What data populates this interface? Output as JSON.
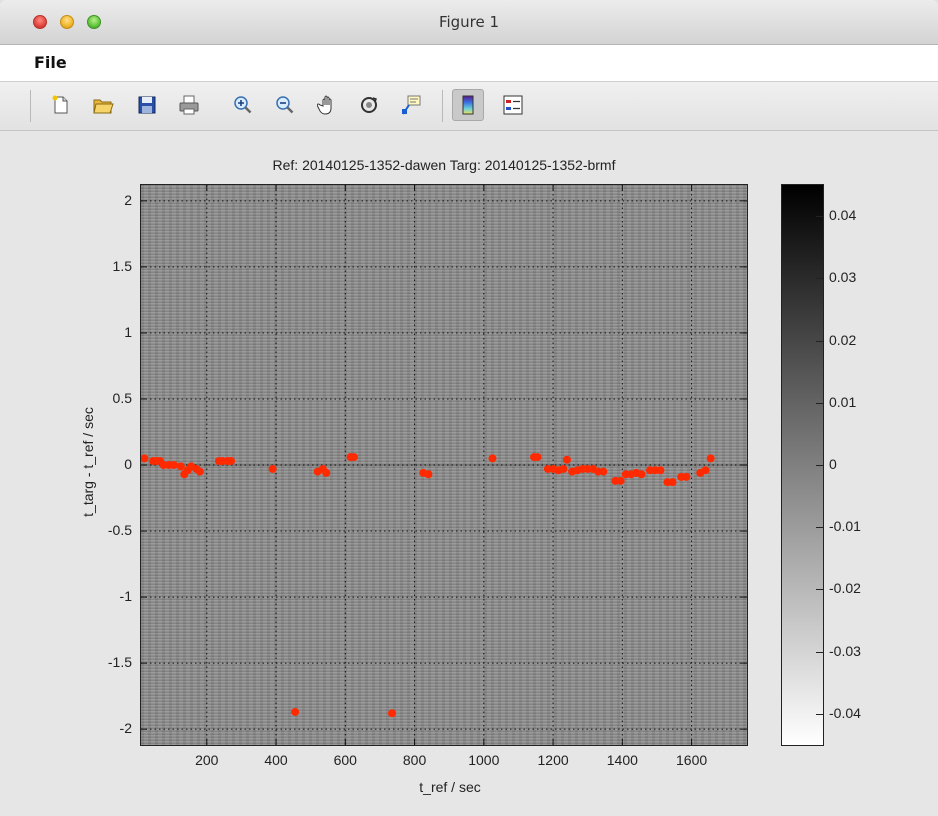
{
  "window": {
    "title": "Figure 1"
  },
  "menubar": {
    "items": [
      "File"
    ]
  },
  "toolbar": {
    "buttons": [
      {
        "name": "new-figure-icon"
      },
      {
        "name": "open-file-icon"
      },
      {
        "name": "save-icon"
      },
      {
        "name": "print-icon"
      },
      {
        "name": "zoom-in-icon"
      },
      {
        "name": "zoom-out-icon"
      },
      {
        "name": "pan-hand-icon"
      },
      {
        "name": "rotate-3d-icon"
      },
      {
        "name": "data-cursor-icon"
      },
      {
        "name": "colorbar-icon"
      },
      {
        "name": "legend-icon"
      }
    ]
  },
  "chart_data": {
    "type": "heatmap",
    "title": "Ref: 20140125-1352-dawen Targ: 20140125-1352-brmf",
    "xlabel": "t_ref / sec",
    "ylabel": "t_targ - t_ref / sec",
    "xlim": [
      10,
      1760
    ],
    "ylim": [
      -2.12,
      2.12
    ],
    "xticks": [
      200,
      400,
      600,
      800,
      1000,
      1200,
      1400,
      1600
    ],
    "yticks": [
      2,
      1.5,
      1,
      0.5,
      0,
      -0.5,
      -1,
      -1.5,
      -2
    ],
    "ytick_labels": [
      "2",
      "1.5",
      "1",
      "0.5",
      "0",
      "-0.5",
      "-1",
      "-1.5",
      "-2"
    ],
    "grid": true,
    "colormap": "gray (white = low, black = high)",
    "colorbar": {
      "ticks": [
        "0.04",
        "0.03",
        "0.02",
        "0.01",
        "0",
        "-0.01",
        "-0.02",
        "-0.03",
        "-0.04"
      ],
      "range": [
        -0.045,
        0.045
      ]
    },
    "marker_color": "#ff2a00",
    "points": [
      {
        "x": 20,
        "y": 0.05
      },
      {
        "x": 45,
        "y": 0.03
      },
      {
        "x": 55,
        "y": 0.03
      },
      {
        "x": 65,
        "y": 0.03
      },
      {
        "x": 75,
        "y": 0.0
      },
      {
        "x": 90,
        "y": 0.0
      },
      {
        "x": 105,
        "y": 0.0
      },
      {
        "x": 125,
        "y": -0.01
      },
      {
        "x": 135,
        "y": -0.07
      },
      {
        "x": 145,
        "y": -0.04
      },
      {
        "x": 155,
        "y": -0.01
      },
      {
        "x": 170,
        "y": -0.03
      },
      {
        "x": 180,
        "y": -0.05
      },
      {
        "x": 235,
        "y": 0.03
      },
      {
        "x": 245,
        "y": 0.03
      },
      {
        "x": 260,
        "y": 0.03
      },
      {
        "x": 270,
        "y": 0.03
      },
      {
        "x": 390,
        "y": -0.03
      },
      {
        "x": 455,
        "y": -1.87
      },
      {
        "x": 520,
        "y": -0.05
      },
      {
        "x": 535,
        "y": -0.03
      },
      {
        "x": 545,
        "y": -0.06
      },
      {
        "x": 615,
        "y": 0.06
      },
      {
        "x": 625,
        "y": 0.06
      },
      {
        "x": 735,
        "y": -1.88
      },
      {
        "x": 825,
        "y": -0.06
      },
      {
        "x": 840,
        "y": -0.07
      },
      {
        "x": 1025,
        "y": 0.05
      },
      {
        "x": 1145,
        "y": 0.06
      },
      {
        "x": 1155,
        "y": 0.06
      },
      {
        "x": 1185,
        "y": -0.03
      },
      {
        "x": 1200,
        "y": -0.03
      },
      {
        "x": 1215,
        "y": -0.04
      },
      {
        "x": 1230,
        "y": -0.03
      },
      {
        "x": 1240,
        "y": 0.04
      },
      {
        "x": 1255,
        "y": -0.05
      },
      {
        "x": 1270,
        "y": -0.04
      },
      {
        "x": 1285,
        "y": -0.03
      },
      {
        "x": 1300,
        "y": -0.03
      },
      {
        "x": 1315,
        "y": -0.03
      },
      {
        "x": 1330,
        "y": -0.05
      },
      {
        "x": 1345,
        "y": -0.05
      },
      {
        "x": 1380,
        "y": -0.12
      },
      {
        "x": 1395,
        "y": -0.12
      },
      {
        "x": 1410,
        "y": -0.07
      },
      {
        "x": 1425,
        "y": -0.07
      },
      {
        "x": 1440,
        "y": -0.06
      },
      {
        "x": 1455,
        "y": -0.07
      },
      {
        "x": 1480,
        "y": -0.04
      },
      {
        "x": 1495,
        "y": -0.04
      },
      {
        "x": 1510,
        "y": -0.04
      },
      {
        "x": 1530,
        "y": -0.13
      },
      {
        "x": 1545,
        "y": -0.13
      },
      {
        "x": 1570,
        "y": -0.09
      },
      {
        "x": 1585,
        "y": -0.09
      },
      {
        "x": 1625,
        "y": -0.06
      },
      {
        "x": 1640,
        "y": -0.04
      },
      {
        "x": 1655,
        "y": 0.05
      }
    ]
  }
}
